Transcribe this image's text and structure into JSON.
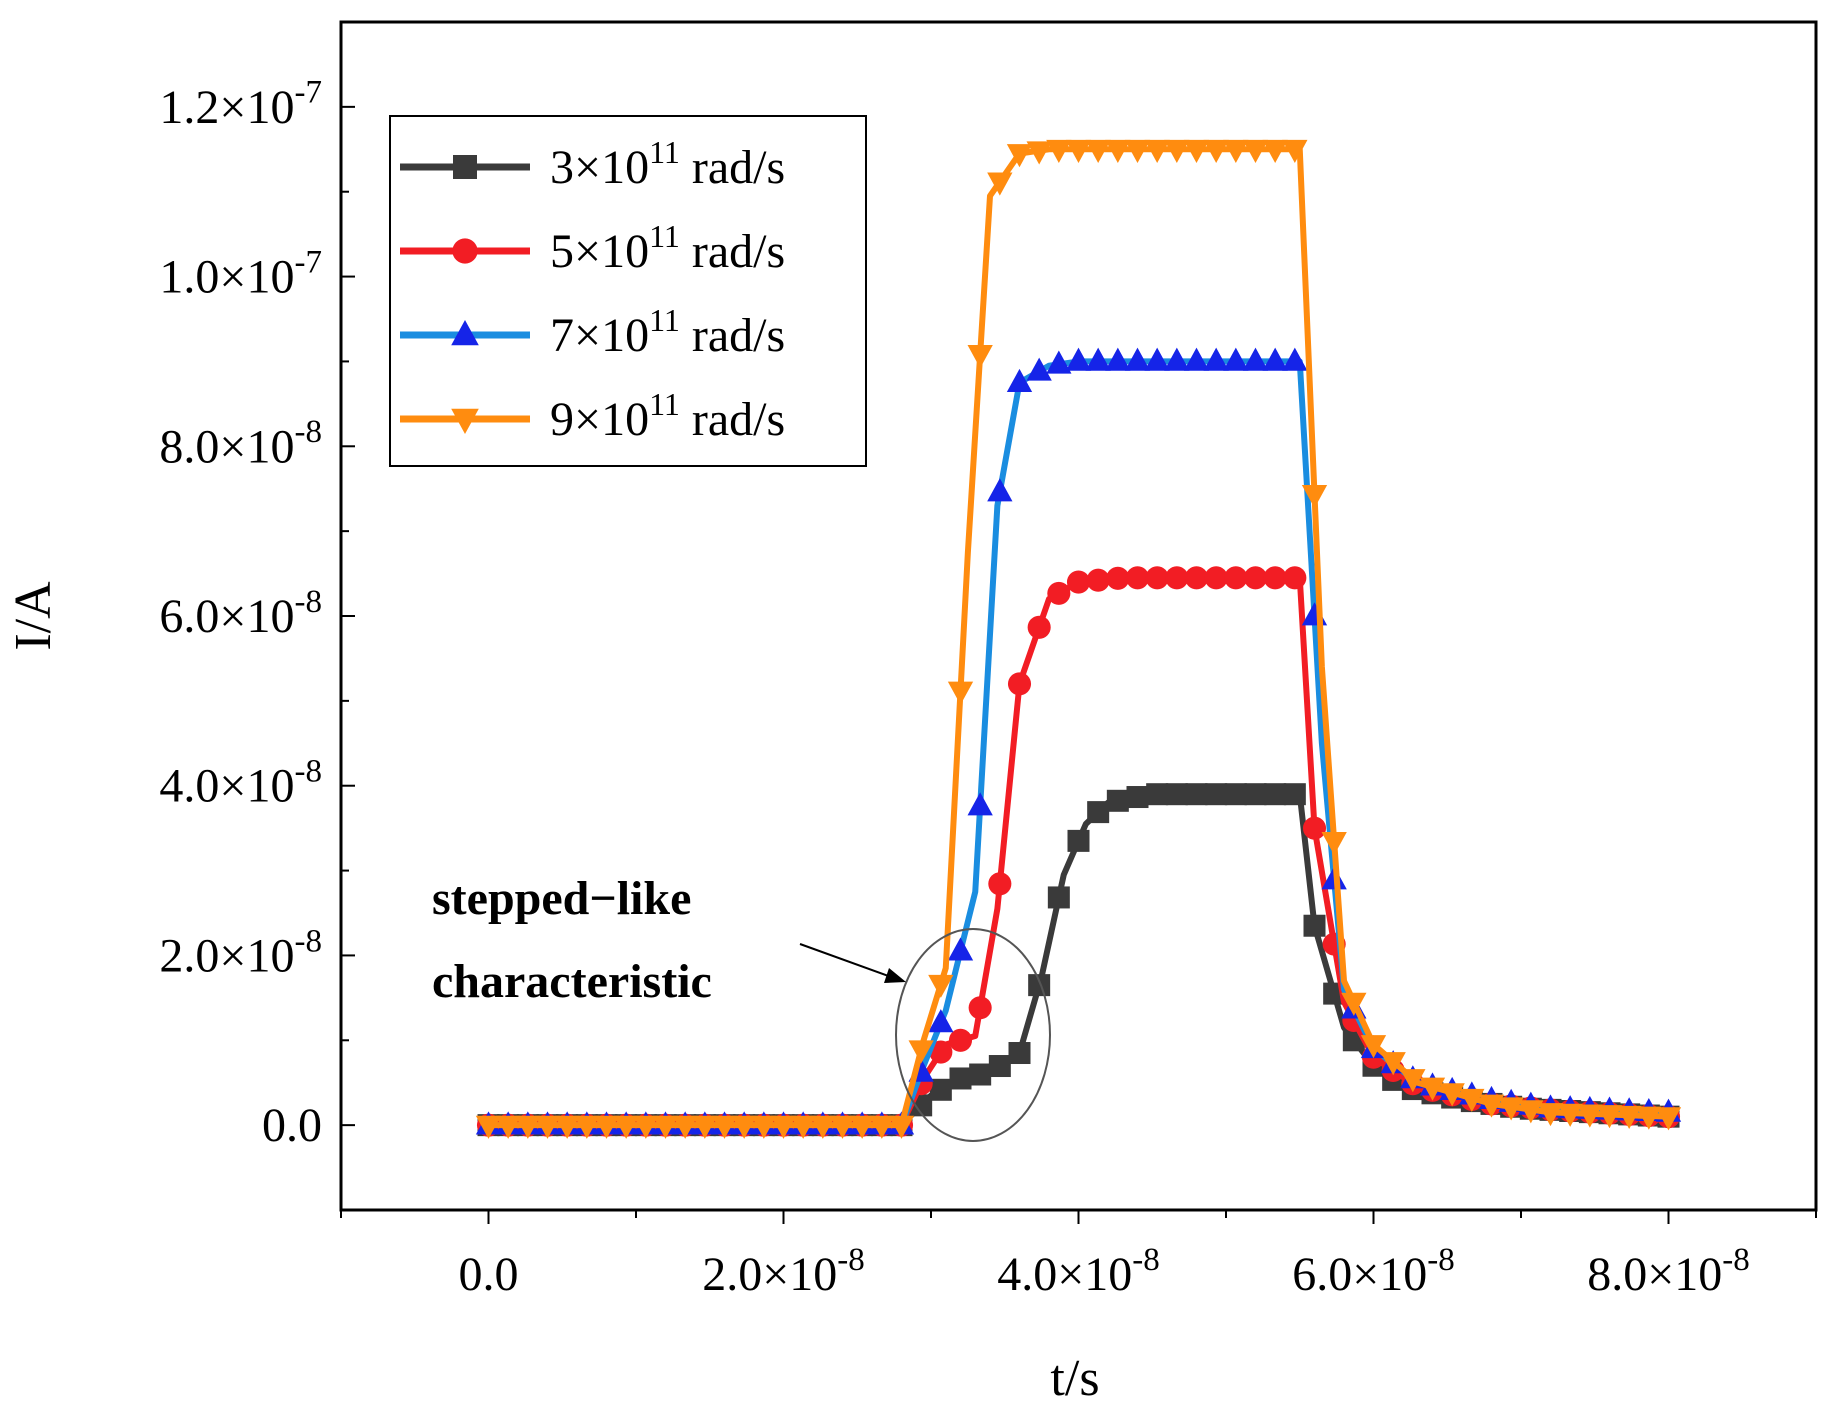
{
  "chart_data": {
    "type": "line",
    "title": "",
    "xlabel": "t/s",
    "ylabel": "I/A",
    "xlim": [
      -1e-08,
      9e-08
    ],
    "ylim": [
      -1e-08,
      1.3e-07
    ],
    "grid": false,
    "legend_position": "top-left",
    "x_ticks": [
      {
        "value": 0,
        "mant": "0.0",
        "exp": ""
      },
      {
        "value": 2e-08,
        "mant": "2.0×10",
        "exp": "-8"
      },
      {
        "value": 4e-08,
        "mant": "4.0×10",
        "exp": "-8"
      },
      {
        "value": 6e-08,
        "mant": "6.0×10",
        "exp": "-8"
      },
      {
        "value": 8e-08,
        "mant": "8.0×10",
        "exp": "-8"
      }
    ],
    "y_ticks": [
      {
        "value": 0,
        "mant": "0.0",
        "exp": ""
      },
      {
        "value": 2e-08,
        "mant": "2.0×10",
        "exp": "-8"
      },
      {
        "value": 4e-08,
        "mant": "4.0×10",
        "exp": "-8"
      },
      {
        "value": 6e-08,
        "mant": "6.0×10",
        "exp": "-8"
      },
      {
        "value": 8e-08,
        "mant": "8.0×10",
        "exp": "-8"
      },
      {
        "value": 1e-07,
        "mant": "1.0×10",
        "exp": "-7"
      },
      {
        "value": 1.2e-07,
        "mant": "1.2×10",
        "exp": "-7"
      }
    ],
    "series": [
      {
        "name": "3×10^11 rad/s",
        "legend_mant": "3×10",
        "legend_exp": "11",
        "legend_unit": " rad/s",
        "color": "#3a3a3a",
        "marker": "square",
        "x": [
          0.0,
          2.8e-08,
          3e-08,
          3.2e-08,
          3.4e-08,
          3.6e-08,
          3.75e-08,
          3.9e-08,
          4.05e-08,
          4.2e-08,
          4.5e-08,
          5e-08,
          5.5e-08,
          5.6e-08,
          5.8e-08,
          6e-08,
          6.2e-08,
          6.6e-08,
          7e-08,
          7.5e-08,
          8e-08
        ],
        "y": [
          0.0,
          0.0,
          3.5e-09,
          5.5e-09,
          6.2e-09,
          8.5e-09,
          1.75e-08,
          2.95e-08,
          3.55e-08,
          3.8e-08,
          3.9e-08,
          3.9e-08,
          3.9e-08,
          2.35e-08,
          1.15e-08,
          7e-09,
          4.5e-09,
          3e-09,
          2e-09,
          1.5e-09,
          1e-09
        ]
      },
      {
        "name": "5×10^11 rad/s",
        "legend_mant": "5×10",
        "legend_exp": "11",
        "legend_unit": " rad/s",
        "color": "#f21d24",
        "marker": "circle",
        "x": [
          0.0,
          2.8e-08,
          2.95e-08,
          3.1e-08,
          3.3e-08,
          3.45e-08,
          3.6e-08,
          3.8e-08,
          4e-08,
          4.3e-08,
          5e-08,
          5.5e-08,
          5.6e-08,
          5.8e-08,
          6e-08,
          6.3e-08,
          6.8e-08,
          7.2e-08,
          8e-08
        ],
        "y": [
          0.0,
          0.0,
          5.5e-09,
          9.5e-09,
          1.05e-08,
          2.55e-08,
          5.2e-08,
          6.2e-08,
          6.4e-08,
          6.45e-08,
          6.45e-08,
          6.45e-08,
          3.5e-08,
          1.45e-08,
          8e-09,
          4.5e-09,
          2.5e-09,
          1.8e-09,
          1e-09
        ]
      },
      {
        "name": "7×10^11 rad/s",
        "legend_mant": "7×10",
        "legend_exp": "11",
        "legend_unit": " rad/s",
        "color": "#1a8de0",
        "marker_color": "#1524e8",
        "marker": "triangle-up",
        "x": [
          0.0,
          2.8e-08,
          2.95e-08,
          3.1e-08,
          3.3e-08,
          3.45e-08,
          3.6e-08,
          3.8e-08,
          4e-08,
          4.5e-08,
          5e-08,
          5.5e-08,
          5.65e-08,
          5.8e-08,
          6e-08,
          6.3e-08,
          6.8e-08,
          7.2e-08,
          8e-08
        ],
        "y": [
          0.0,
          0.0,
          7e-09,
          1.35e-08,
          2.75e-08,
          7.3e-08,
          8.75e-08,
          8.95e-08,
          9e-08,
          9e-08,
          9e-08,
          9e-08,
          4.5e-08,
          1.6e-08,
          9e-09,
          5e-09,
          3e-09,
          2e-09,
          1.5e-09
        ]
      },
      {
        "name": "9×10^11 rad/s",
        "legend_mant": "9×10",
        "legend_exp": "11",
        "legend_unit": " rad/s",
        "color": "#ff8c0f",
        "marker": "triangle-down",
        "x": [
          0.0,
          2.8e-08,
          2.95e-08,
          3.1e-08,
          3.25e-08,
          3.4e-08,
          3.6e-08,
          3.8e-08,
          4e-08,
          4.5e-08,
          5e-08,
          5.5e-08,
          5.65e-08,
          5.8e-08,
          6e-08,
          6.3e-08,
          6.8e-08,
          7.2e-08,
          8e-08
        ],
        "y": [
          0.0,
          0.0,
          1e-08,
          1.85e-08,
          6.75e-08,
          1.095e-07,
          1.145e-07,
          1.15e-07,
          1.15e-07,
          1.15e-07,
          1.15e-07,
          1.15e-07,
          5.4e-08,
          1.7e-08,
          9.5e-09,
          5e-09,
          2.5e-09,
          1.5e-09,
          1e-09
        ]
      }
    ],
    "annotations": [
      {
        "text_line1": "stepped−like",
        "text_line2": "characteristic",
        "points_to_x": 3.2e-08,
        "points_to_y": 1.1e-08
      }
    ]
  }
}
